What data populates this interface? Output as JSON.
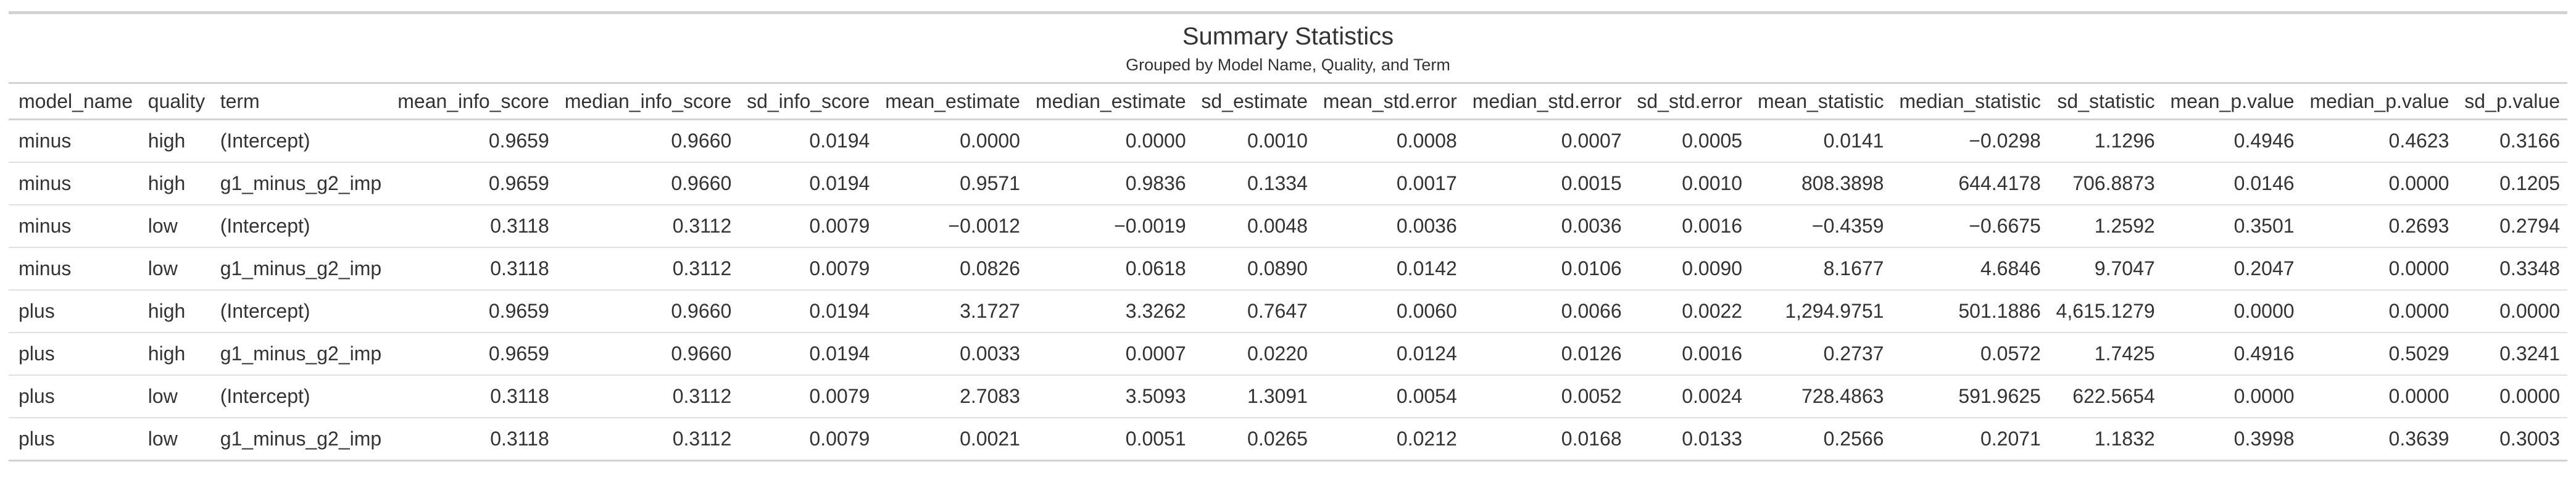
{
  "title": "Summary Statistics",
  "subtitle": "Grouped by Model Name, Quality, and Term",
  "columns": [
    "model_name",
    "quality",
    "term",
    "mean_info_score",
    "median_info_score",
    "sd_info_score",
    "mean_estimate",
    "median_estimate",
    "sd_estimate",
    "mean_std.error",
    "median_std.error",
    "sd_std.error",
    "mean_statistic",
    "median_statistic",
    "sd_statistic",
    "mean_p.value",
    "median_p.value",
    "sd_p.value"
  ],
  "rows": [
    [
      "minus",
      "high",
      "(Intercept)",
      "0.9659",
      "0.9660",
      "0.0194",
      "0.0000",
      "0.0000",
      "0.0010",
      "0.0008",
      "0.0007",
      "0.0005",
      "0.0141",
      "−0.0298",
      "1.1296",
      "0.4946",
      "0.4623",
      "0.3166"
    ],
    [
      "minus",
      "high",
      "g1_minus_g2_imp",
      "0.9659",
      "0.9660",
      "0.0194",
      "0.9571",
      "0.9836",
      "0.1334",
      "0.0017",
      "0.0015",
      "0.0010",
      "808.3898",
      "644.4178",
      "706.8873",
      "0.0146",
      "0.0000",
      "0.1205"
    ],
    [
      "minus",
      "low",
      "(Intercept)",
      "0.3118",
      "0.3112",
      "0.0079",
      "−0.0012",
      "−0.0019",
      "0.0048",
      "0.0036",
      "0.0036",
      "0.0016",
      "−0.4359",
      "−0.6675",
      "1.2592",
      "0.3501",
      "0.2693",
      "0.2794"
    ],
    [
      "minus",
      "low",
      "g1_minus_g2_imp",
      "0.3118",
      "0.3112",
      "0.0079",
      "0.0826",
      "0.0618",
      "0.0890",
      "0.0142",
      "0.0106",
      "0.0090",
      "8.1677",
      "4.6846",
      "9.7047",
      "0.2047",
      "0.0000",
      "0.3348"
    ],
    [
      "plus",
      "high",
      "(Intercept)",
      "0.9659",
      "0.9660",
      "0.0194",
      "3.1727",
      "3.3262",
      "0.7647",
      "0.0060",
      "0.0066",
      "0.0022",
      "1,294.9751",
      "501.1886",
      "4,615.1279",
      "0.0000",
      "0.0000",
      "0.0000"
    ],
    [
      "plus",
      "high",
      "g1_minus_g2_imp",
      "0.9659",
      "0.9660",
      "0.0194",
      "0.0033",
      "0.0007",
      "0.0220",
      "0.0124",
      "0.0126",
      "0.0016",
      "0.2737",
      "0.0572",
      "1.7425",
      "0.4916",
      "0.5029",
      "0.3241"
    ],
    [
      "plus",
      "low",
      "(Intercept)",
      "0.3118",
      "0.3112",
      "0.0079",
      "2.7083",
      "3.5093",
      "1.3091",
      "0.0054",
      "0.0052",
      "0.0024",
      "728.4863",
      "591.9625",
      "622.5654",
      "0.0000",
      "0.0000",
      "0.0000"
    ],
    [
      "plus",
      "low",
      "g1_minus_g2_imp",
      "0.3118",
      "0.3112",
      "0.0079",
      "0.0021",
      "0.0051",
      "0.0265",
      "0.0212",
      "0.0168",
      "0.0133",
      "0.2566",
      "0.2071",
      "1.1832",
      "0.3998",
      "0.3639",
      "0.3003"
    ]
  ]
}
